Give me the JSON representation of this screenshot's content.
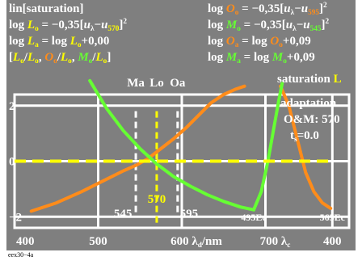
{
  "header_lines": [
    [
      {
        "t": "lin[saturation]",
        "c": "#ffffff"
      }
    ],
    [
      {
        "t": "log ",
        "c": "#ffffff"
      },
      {
        "t": "L",
        "c": "#ffff00",
        "i": true
      },
      {
        "t": "o",
        "c": "#ffff00",
        "sub": true
      },
      {
        "t": " = −0,35[",
        "c": "#ffffff"
      },
      {
        "t": "u",
        "c": "#ffffff",
        "i": true
      },
      {
        "t": "λ",
        "c": "#ffffff",
        "sub": true
      },
      {
        "t": "−",
        "c": "#ffffff"
      },
      {
        "t": "u",
        "c": "#ffffff",
        "i": true
      },
      {
        "t": "570",
        "c": "#ffff00",
        "sub": true
      },
      {
        "t": "]",
        "c": "#ffffff"
      },
      {
        "t": "2",
        "c": "#ffffff",
        "sup": true
      }
    ],
    [
      {
        "t": "log ",
        "c": "#ffffff"
      },
      {
        "t": "L",
        "c": "#ffff00",
        "i": true
      },
      {
        "t": "a",
        "c": "#ffff00",
        "sub": true
      },
      {
        "t": " = log ",
        "c": "#ffffff"
      },
      {
        "t": "L",
        "c": "#ffff00",
        "i": true
      },
      {
        "t": "o",
        "c": "#ffff00",
        "sub": true
      },
      {
        "t": "+0,00",
        "c": "#ffffff"
      }
    ],
    [
      {
        "t": "[",
        "c": "#ffffff"
      },
      {
        "t": "L",
        "c": "#ffff00",
        "i": true
      },
      {
        "t": "o",
        "c": "#ffff00",
        "sub": true
      },
      {
        "t": "/",
        "c": "#ffffff"
      },
      {
        "t": "L",
        "c": "#ffff00",
        "i": true
      },
      {
        "t": "o",
        "c": "#ffff00",
        "sub": true
      },
      {
        "t": ", ",
        "c": "#ffffff"
      },
      {
        "t": "O",
        "c": "#ff8c1a",
        "i": true
      },
      {
        "t": "o",
        "c": "#ff8c1a",
        "sub": true
      },
      {
        "t": "/",
        "c": "#ffffff"
      },
      {
        "t": "L",
        "c": "#ffff00",
        "i": true
      },
      {
        "t": "o",
        "c": "#ffff00",
        "sub": true
      },
      {
        "t": ", ",
        "c": "#ffffff"
      },
      {
        "t": "M",
        "c": "#66ff33",
        "i": true
      },
      {
        "t": "o",
        "c": "#66ff33",
        "sub": true
      },
      {
        "t": "/",
        "c": "#ffffff"
      },
      {
        "t": "L",
        "c": "#ffff00",
        "i": true
      },
      {
        "t": "o",
        "c": "#ffff00",
        "sub": true
      },
      {
        "t": "]",
        "c": "#ffffff"
      }
    ]
  ],
  "right_header_lines": [
    [
      {
        "t": "log ",
        "c": "#ffffff"
      },
      {
        "t": "O",
        "c": "#ff8c1a",
        "i": true
      },
      {
        "t": "o",
        "c": "#ff8c1a",
        "sub": true
      },
      {
        "t": " = −0,35[",
        "c": "#ffffff"
      },
      {
        "t": "u",
        "c": "#ffffff",
        "i": true
      },
      {
        "t": "λ",
        "c": "#ffffff",
        "sub": true
      },
      {
        "t": "−",
        "c": "#ffffff"
      },
      {
        "t": "u",
        "c": "#ffffff",
        "i": true
      },
      {
        "t": "595",
        "c": "#ff8c1a",
        "sub": true
      },
      {
        "t": "]",
        "c": "#ffffff"
      },
      {
        "t": "2",
        "c": "#ffffff",
        "sup": true
      }
    ],
    [
      {
        "t": "log ",
        "c": "#ffffff"
      },
      {
        "t": "M",
        "c": "#66ff33",
        "i": true
      },
      {
        "t": "o",
        "c": "#66ff33",
        "sub": true
      },
      {
        "t": " = −0,35[",
        "c": "#ffffff"
      },
      {
        "t": "u",
        "c": "#ffffff",
        "i": true
      },
      {
        "t": "λ",
        "c": "#ffffff",
        "sub": true
      },
      {
        "t": "−",
        "c": "#ffffff"
      },
      {
        "t": "u",
        "c": "#ffffff",
        "i": true
      },
      {
        "t": "545",
        "c": "#66ff33",
        "sub": true
      },
      {
        "t": "]",
        "c": "#ffffff"
      },
      {
        "t": "2",
        "c": "#ffffff",
        "sup": true
      }
    ],
    [
      {
        "t": "log ",
        "c": "#ffffff"
      },
      {
        "t": "O",
        "c": "#ff8c1a",
        "i": true
      },
      {
        "t": "a",
        "c": "#ff8c1a",
        "sub": true
      },
      {
        "t": " = log ",
        "c": "#ffffff"
      },
      {
        "t": "O",
        "c": "#ff8c1a",
        "i": true
      },
      {
        "t": "o",
        "c": "#ff8c1a",
        "sub": true
      },
      {
        "t": "+0,09",
        "c": "#ffffff"
      }
    ],
    [
      {
        "t": "log ",
        "c": "#ffffff"
      },
      {
        "t": "M",
        "c": "#66ff33",
        "i": true
      },
      {
        "t": "a",
        "c": "#66ff33",
        "sub": true
      },
      {
        "t": " = log ",
        "c": "#ffffff"
      },
      {
        "t": "M",
        "c": "#66ff33",
        "i": true
      },
      {
        "t": "o",
        "c": "#66ff33",
        "sub": true
      },
      {
        "t": "+0,09",
        "c": "#ffffff"
      }
    ]
  ],
  "right_labels": [
    [
      {
        "t": "saturation ",
        "c": "#ffffff"
      },
      {
        "t": "L",
        "c": "#ffff00"
      }
    ],
    [
      {
        "t": "adaptation",
        "c": "#ffffff"
      }
    ],
    [
      {
        "t": "O&M: 570",
        "c": "#ffffff"
      }
    ],
    [
      {
        "t": "t",
        "c": "#ffffff"
      },
      {
        "t": "s",
        "c": "#ffffff",
        "sub": true
      },
      {
        "t": "=0.0",
        "c": "#ffffff"
      }
    ]
  ],
  "marker_labels": [
    {
      "text": "Ma",
      "color": "#ffffff",
      "x": 545
    },
    {
      "text": "Lo",
      "color": "#ffffff",
      "x": 570
    },
    {
      "text": "Oa",
      "color": "#ffffff",
      "x": 595
    }
  ],
  "wavelength_labels": [
    {
      "text": "545",
      "color": "#ffffff",
      "x": 545
    },
    {
      "text": "570",
      "color": "#ffff00",
      "x": 570
    },
    {
      "text": "595",
      "color": "#ffffff",
      "x": 595
    }
  ],
  "end_labels": [
    {
      "text": "495Ec",
      "color": "#ffffff",
      "x": 686
    },
    {
      "text": "565Ec",
      "color": "#ffffff",
      "x": 780
    }
  ],
  "bottom_label": "eex30−4a",
  "colors": {
    "background": "#7f7f7f",
    "frame": "#ffffff",
    "yellow": "#ffff00",
    "orange": "#ff8c1a",
    "green": "#66ff33",
    "page": "#ffffff"
  },
  "chart_data": {
    "type": "line",
    "xlim": [
      400,
      800
    ],
    "ylim": [
      -2.4,
      2.4
    ],
    "x_ticks": [
      [
        {
          "t": "400",
          "c": "#ffffff"
        }
      ],
      [
        {
          "t": "500",
          "c": "#ffffff"
        }
      ],
      [
        {
          "t": "600 ",
          "c": "#ffffff"
        },
        {
          "t": "λ",
          "c": "#ffffff"
        },
        {
          "t": "d",
          "c": "#ffffff",
          "sub": true
        },
        {
          "t": "/nm",
          "c": "#ffffff"
        }
      ],
      [
        {
          "t": "700 ",
          "c": "#ffffff"
        },
        {
          "t": "λ",
          "c": "#ffffff"
        },
        {
          "t": "c",
          "c": "#ffffff",
          "sub": true
        }
      ],
      [
        {
          "t": "400",
          "c": "#ffffff"
        }
      ]
    ],
    "x_tick_values": [
      400,
      500,
      600,
      700,
      780
    ],
    "y_ticks": [
      "2",
      "0",
      "−2"
    ],
    "y_tick_values": [
      2,
      0,
      -2
    ],
    "grid": true,
    "series": [
      {
        "color": "#ff8c1a",
        "x": [
          420,
          450,
          480,
          510,
          530,
          545,
          560,
          575,
          590,
          605,
          620,
          635,
          650,
          665,
          675
        ],
        "y": [
          -1.8,
          -1.5,
          -1.1,
          -0.65,
          -0.35,
          -0.15,
          0.1,
          0.45,
          0.8,
          1.2,
          1.65,
          2.1,
          2.4,
          2.6,
          2.7
        ]
      },
      {
        "color": "#ff8c1a",
        "x": [
          718,
          728,
          738,
          748,
          758,
          768,
          778
        ],
        "y": [
          2.7,
          2.0,
          0.8,
          -0.4,
          -1.1,
          -1.5,
          -1.7
        ]
      },
      {
        "color": "#66ff33",
        "x": [
          490,
          510,
          530,
          550,
          570,
          590,
          610,
          630,
          650,
          670,
          686
        ],
        "y": [
          2.9,
          1.9,
          1.1,
          0.45,
          -0.1,
          -0.55,
          -0.9,
          -1.2,
          -1.45,
          -1.65,
          -1.75
        ]
      },
      {
        "color": "#66ff33",
        "x": [
          686,
          695,
          703,
          710,
          716,
          720
        ],
        "y": [
          -1.75,
          -1.1,
          0.0,
          1.2,
          2.2,
          2.8
        ]
      },
      {
        "color": "#ffff00",
        "dashed": true,
        "x": [
          400,
          780
        ],
        "y": [
          0,
          0
        ]
      }
    ],
    "markers": [
      {
        "x": 545,
        "color": "#ffffff",
        "y_from": -2,
        "y_to": 1.8
      },
      {
        "x": 570,
        "color": "#ffff00",
        "y_from": -2.3,
        "y_to": 1.8
      },
      {
        "x": 595,
        "color": "#ffffff",
        "y_from": -2,
        "y_to": 1.8
      }
    ]
  }
}
